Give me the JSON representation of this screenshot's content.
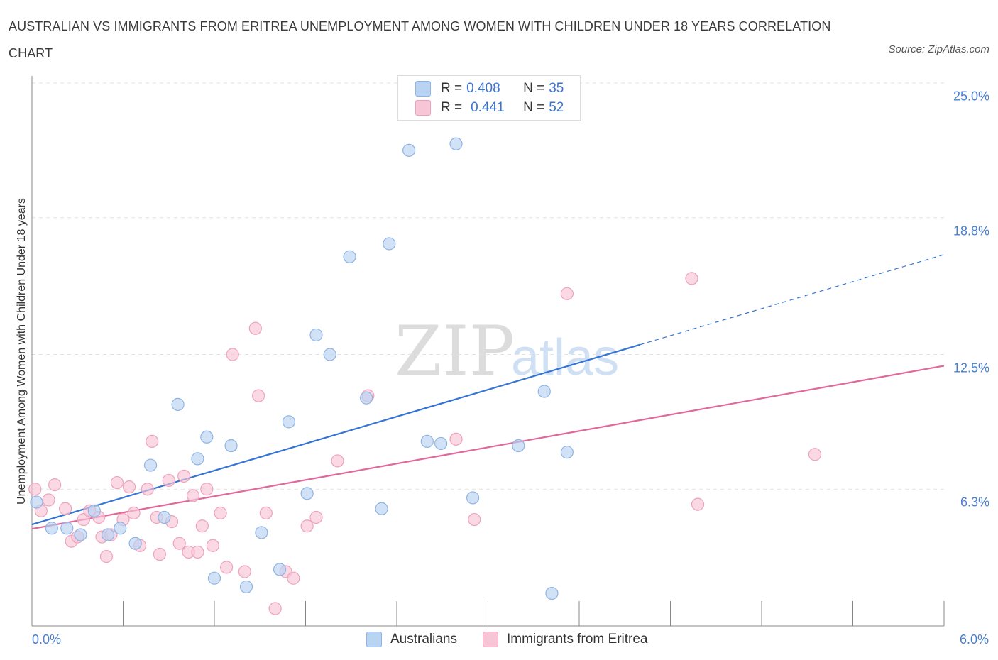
{
  "title": "AUSTRALIAN VS IMMIGRANTS FROM ERITREA UNEMPLOYMENT AMONG WOMEN WITH CHILDREN UNDER 18 YEARS CORRELATION CHART",
  "source": "Source: ZipAtlas.com",
  "watermark": {
    "zip": "ZIP",
    "atlas": "atlas"
  },
  "legend_top": {
    "rows": [
      {
        "r_label": "R = ",
        "r_value": "0.408",
        "n_label": "N = ",
        "n_value": "35"
      },
      {
        "r_label": "R = ",
        "r_value": "0.441",
        "n_label": "N = ",
        "n_value": "52"
      }
    ]
  },
  "colors": {
    "blue_fill": "#b9d3f3",
    "blue_stroke": "#8fb3e4",
    "blue_line": "#3474d4",
    "pink_fill": "#f8c5d6",
    "pink_stroke": "#eea2bb",
    "pink_line": "#e0689a",
    "tick_text": "#4a7fd0"
  },
  "chart_data": {
    "type": "scatter",
    "title": "AUSTRALIAN VS IMMIGRANTS FROM ERITREA UNEMPLOYMENT AMONG WOMEN WITH CHILDREN UNDER 18 YEARS CORRELATION CHART",
    "xlabel": "",
    "ylabel": "Unemployment Among Women with Children Under 18 years",
    "xlim": [
      0.0,
      6.0
    ],
    "ylim": [
      0.0,
      25.0
    ],
    "x_tick_labels": [
      "0.0%",
      "6.0%"
    ],
    "y_ticks": [
      {
        "value": 6.3,
        "label": "6.3%"
      },
      {
        "value": 12.5,
        "label": "12.5%"
      },
      {
        "value": 18.8,
        "label": "18.8%"
      },
      {
        "value": 25.0,
        "label": "25.0%"
      }
    ],
    "grid": true,
    "series": [
      {
        "name": "Australians",
        "r": 0.408,
        "n": 35,
        "trend": {
          "x0": 0.0,
          "y0": 4.67,
          "x1": 4.0,
          "y1": 12.95,
          "dash_to_x": 6.0,
          "dash_to_y": 17.1
        },
        "points": [
          {
            "x": 0.03,
            "y": 5.7
          },
          {
            "x": 0.13,
            "y": 4.5
          },
          {
            "x": 0.23,
            "y": 4.5
          },
          {
            "x": 0.32,
            "y": 4.2
          },
          {
            "x": 0.41,
            "y": 5.3
          },
          {
            "x": 0.5,
            "y": 4.2
          },
          {
            "x": 0.58,
            "y": 4.5
          },
          {
            "x": 0.68,
            "y": 3.8
          },
          {
            "x": 0.78,
            "y": 7.4
          },
          {
            "x": 0.87,
            "y": 5.0
          },
          {
            "x": 0.96,
            "y": 10.2
          },
          {
            "x": 1.09,
            "y": 7.7
          },
          {
            "x": 1.15,
            "y": 8.7
          },
          {
            "x": 1.2,
            "y": 2.2
          },
          {
            "x": 1.31,
            "y": 8.3
          },
          {
            "x": 1.41,
            "y": 1.8
          },
          {
            "x": 1.51,
            "y": 4.3
          },
          {
            "x": 1.63,
            "y": 2.6
          },
          {
            "x": 1.69,
            "y": 9.4
          },
          {
            "x": 1.81,
            "y": 6.1
          },
          {
            "x": 1.87,
            "y": 13.4
          },
          {
            "x": 1.96,
            "y": 12.5
          },
          {
            "x": 2.09,
            "y": 17.0
          },
          {
            "x": 2.2,
            "y": 10.5
          },
          {
            "x": 2.3,
            "y": 5.4
          },
          {
            "x": 2.35,
            "y": 17.6
          },
          {
            "x": 2.48,
            "y": 21.9
          },
          {
            "x": 2.6,
            "y": 8.5
          },
          {
            "x": 2.69,
            "y": 8.4
          },
          {
            "x": 2.79,
            "y": 22.2
          },
          {
            "x": 2.9,
            "y": 5.9
          },
          {
            "x": 3.2,
            "y": 8.3
          },
          {
            "x": 3.37,
            "y": 10.8
          },
          {
            "x": 3.42,
            "y": 1.5
          },
          {
            "x": 3.52,
            "y": 8.0
          }
        ]
      },
      {
        "name": "Immigrants from Eritrea",
        "r": 0.441,
        "n": 52,
        "trend": {
          "x0": 0.0,
          "y0": 4.47,
          "x1": 6.0,
          "y1": 11.98
        },
        "points": [
          {
            "x": 0.02,
            "y": 6.3
          },
          {
            "x": 0.06,
            "y": 5.3
          },
          {
            "x": 0.11,
            "y": 5.8
          },
          {
            "x": 0.15,
            "y": 6.5
          },
          {
            "x": 0.22,
            "y": 5.4
          },
          {
            "x": 0.26,
            "y": 3.9
          },
          {
            "x": 0.3,
            "y": 4.1
          },
          {
            "x": 0.34,
            "y": 4.9
          },
          {
            "x": 0.38,
            "y": 5.3
          },
          {
            "x": 0.44,
            "y": 5.0
          },
          {
            "x": 0.46,
            "y": 4.1
          },
          {
            "x": 0.49,
            "y": 3.2
          },
          {
            "x": 0.52,
            "y": 4.2
          },
          {
            "x": 0.56,
            "y": 6.6
          },
          {
            "x": 0.6,
            "y": 4.9
          },
          {
            "x": 0.64,
            "y": 6.4
          },
          {
            "x": 0.67,
            "y": 5.2
          },
          {
            "x": 0.71,
            "y": 3.7
          },
          {
            "x": 0.76,
            "y": 6.3
          },
          {
            "x": 0.79,
            "y": 8.5
          },
          {
            "x": 0.82,
            "y": 5.0
          },
          {
            "x": 0.84,
            "y": 3.3
          },
          {
            "x": 0.9,
            "y": 6.7
          },
          {
            "x": 0.92,
            "y": 4.8
          },
          {
            "x": 0.97,
            "y": 3.8
          },
          {
            "x": 1.0,
            "y": 6.9
          },
          {
            "x": 1.03,
            "y": 3.4
          },
          {
            "x": 1.06,
            "y": 6.0
          },
          {
            "x": 1.09,
            "y": 3.4
          },
          {
            "x": 1.12,
            "y": 4.6
          },
          {
            "x": 1.15,
            "y": 6.3
          },
          {
            "x": 1.19,
            "y": 3.7
          },
          {
            "x": 1.24,
            "y": 5.2
          },
          {
            "x": 1.28,
            "y": 2.7
          },
          {
            "x": 1.32,
            "y": 12.5
          },
          {
            "x": 1.4,
            "y": 2.5
          },
          {
            "x": 1.47,
            "y": 13.7
          },
          {
            "x": 1.49,
            "y": 10.6
          },
          {
            "x": 1.54,
            "y": 5.2
          },
          {
            "x": 1.6,
            "y": 0.8
          },
          {
            "x": 1.67,
            "y": 2.5
          },
          {
            "x": 1.72,
            "y": 2.2
          },
          {
            "x": 1.81,
            "y": 4.6
          },
          {
            "x": 1.87,
            "y": 5.0
          },
          {
            "x": 2.01,
            "y": 7.6
          },
          {
            "x": 2.21,
            "y": 10.6
          },
          {
            "x": 2.79,
            "y": 8.6
          },
          {
            "x": 2.91,
            "y": 4.9
          },
          {
            "x": 3.52,
            "y": 15.3
          },
          {
            "x": 4.34,
            "y": 16.0
          },
          {
            "x": 4.38,
            "y": 5.6
          },
          {
            "x": 5.15,
            "y": 7.9
          }
        ]
      }
    ]
  }
}
